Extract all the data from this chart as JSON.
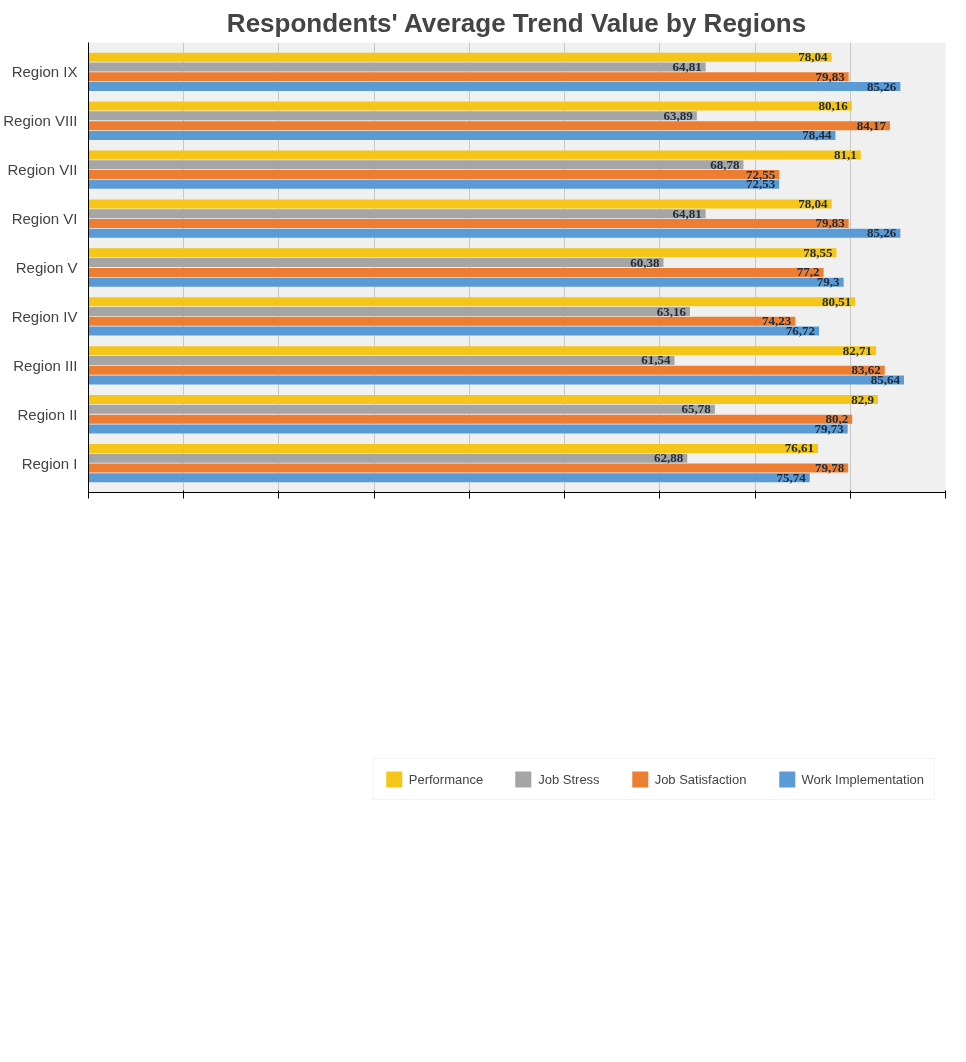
{
  "chart_data": {
    "type": "bar",
    "orientation": "horizontal",
    "title": "Respondents' Average Trend Value by Regions",
    "categories": [
      "Region IX",
      "Region VIII",
      "Region VII",
      "Region VI",
      "Region V",
      "Region IV",
      "Region III",
      "Region II",
      "Region I"
    ],
    "series": [
      {
        "name": "Performance",
        "color": "#f5c518",
        "values": [
          78.04,
          80.16,
          81.1,
          78.04,
          78.55,
          80.51,
          82.71,
          82.9,
          76.61
        ],
        "value_labels": [
          "78,04",
          "80,16",
          "81,1",
          "78,04",
          "78,55",
          "80,51",
          "82,71",
          "82,9",
          "76,61"
        ]
      },
      {
        "name": "Job Stress",
        "color": "#a5a5a5",
        "values": [
          64.81,
          63.89,
          68.78,
          64.81,
          60.38,
          63.16,
          61.54,
          65.78,
          62.88
        ],
        "value_labels": [
          "64,81",
          "63,89",
          "68,78",
          "64,81",
          "60,38",
          "63,16",
          "61,54",
          "65,78",
          "62,88"
        ]
      },
      {
        "name": "Job Satisfaction",
        "color": "#ed7d31",
        "values": [
          79.83,
          84.17,
          72.55,
          79.83,
          77.2,
          74.23,
          83.62,
          80.2,
          79.78
        ],
        "value_labels": [
          "79,83",
          "84,17",
          "72,55",
          "79,83",
          "77,2",
          "74,23",
          "83,62",
          "80,2",
          "79,78"
        ]
      },
      {
        "name": "Work Implementation",
        "color": "#5b9bd5",
        "values": [
          85.26,
          78.44,
          72.53,
          85.26,
          79.3,
          76.72,
          85.64,
          79.73,
          75.74
        ],
        "value_labels": [
          "85,26",
          "78,44",
          "72,53",
          "85,26",
          "79,3",
          "76,72",
          "85,64",
          "79,73",
          "75,74"
        ]
      }
    ],
    "xlim": [
      0,
      90
    ],
    "xticks": [
      {
        "value": 0,
        "label": null
      },
      {
        "value": 10,
        "label": null
      },
      {
        "value": 20,
        "label": null
      },
      {
        "value": 30,
        "label": null
      },
      {
        "value": 40,
        "label": null
      },
      {
        "value": 50,
        "label": null
      },
      {
        "value": 60,
        "label": null
      },
      {
        "value": 70,
        "label": null
      },
      {
        "value": 80,
        "label": null
      },
      {
        "value": 90,
        "label": null
      }
    ],
    "tick_labels": "y",
    "grid": "x",
    "legend": "bottom"
  }
}
